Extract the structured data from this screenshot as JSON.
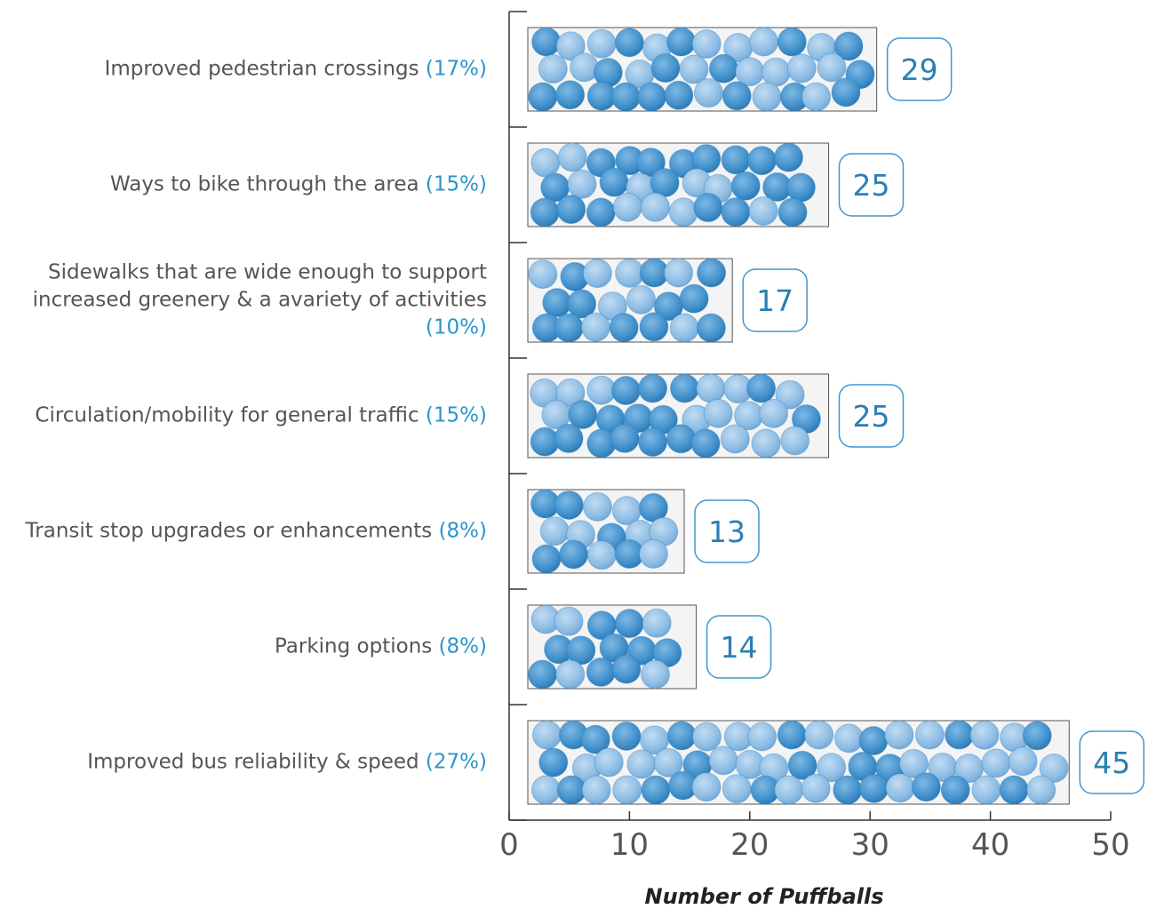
{
  "chart_data": {
    "type": "bar",
    "orientation": "horizontal",
    "categories": [
      "Improved pedestrian crossings",
      "Ways to bike through the area",
      "Sidewalks that are wide enough to support increased greenery & a avariety of activities",
      "Circulation/mobility for general traffic",
      "Transit stop upgrades or enhancements",
      "Parking options",
      "Improved bus reliability & speed"
    ],
    "share_labels": [
      "(17%)",
      "(15%)",
      "(10%)",
      "(15%)",
      "(8%)",
      "(8%)",
      "(27%)"
    ],
    "values": [
      29,
      25,
      17,
      25,
      13,
      14,
      45
    ],
    "xlim": [
      0,
      50
    ],
    "xticks": [
      0,
      10,
      20,
      30,
      40,
      50
    ],
    "x_label": "Number of Puffballs",
    "color": "#3f95d0"
  }
}
